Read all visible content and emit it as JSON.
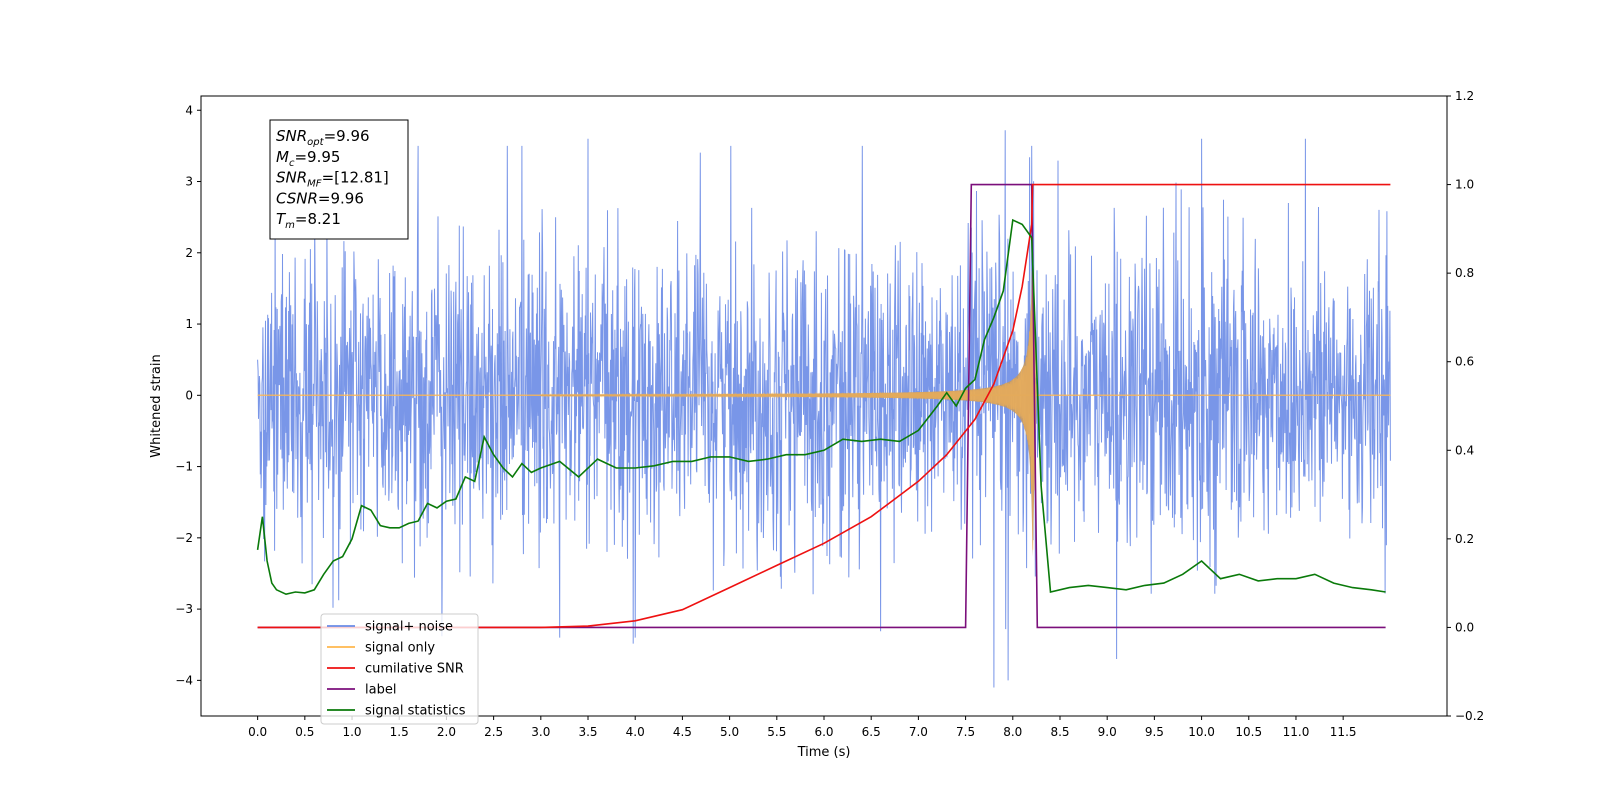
{
  "chart_data": {
    "type": "line",
    "xlabel": "Time (s)",
    "ylabel": "Whitened strain",
    "xlim": [
      -0.6,
      12.6
    ],
    "ylim": [
      -4.5,
      4.2
    ],
    "y2lim": [
      -0.2,
      1.2
    ],
    "x_ticks": [
      0.0,
      0.5,
      1.0,
      1.5,
      2.0,
      2.5,
      3.0,
      3.5,
      4.0,
      4.5,
      5.0,
      5.5,
      6.0,
      6.5,
      7.0,
      7.5,
      8.0,
      8.5,
      9.0,
      9.5,
      10.0,
      10.5,
      11.0,
      11.5
    ],
    "y_ticks": [
      -4,
      -3,
      -2,
      -1,
      0,
      1,
      2,
      3,
      4
    ],
    "y2_ticks": [
      -0.2,
      0.0,
      0.2,
      0.4,
      0.6,
      0.8,
      1.0,
      1.2
    ],
    "grid": false,
    "legend_position": "lower-left",
    "colors": {
      "signal_noise": "#6a8be6",
      "signal_only": "#ffb74d",
      "signal_overlap": "#c19a6b",
      "cumulative_snr": "#ee1111",
      "label": "#7b0f7b",
      "signal_statistics": "#0a7a0a"
    },
    "annotation": [
      {
        "main": "SNR",
        "sub": "opt",
        "value": "=9.96"
      },
      {
        "main": "M",
        "sub": "c",
        "value": "=9.95"
      },
      {
        "main": "SNR",
        "sub": "MF",
        "value": "=[12.81]"
      },
      {
        "main": "CSNR",
        "sub": "",
        "value": "=9.96"
      },
      {
        "main": "T",
        "sub": "m",
        "value": "=8.21"
      }
    ],
    "series": [
      {
        "name": "signal+ noise",
        "axis": "left",
        "description_stats": {
          "x_start": 0.0,
          "x_end": 12.0,
          "mean": 0.0,
          "std": 1.0,
          "max": 3.72,
          "min": -4.12
        },
        "peaks": [
          [
            1.7,
            3.5
          ],
          [
            2.8,
            3.5
          ],
          [
            3.5,
            3.6
          ],
          [
            7.92,
            3.72
          ],
          [
            8.2,
            3.5
          ],
          [
            10.0,
            3.6
          ],
          [
            11.1,
            3.6
          ],
          [
            7.8,
            -4.1
          ],
          [
            7.95,
            -4.0
          ],
          [
            9.1,
            -3.7
          ],
          [
            3.2,
            -3.4
          ],
          [
            4.0,
            -3.4
          ]
        ]
      },
      {
        "name": "signal only",
        "axis": "left",
        "chirp": {
          "t_start": 0.0,
          "t_merger": 8.21,
          "amp_start": 0.01,
          "amp_merger": 2.3,
          "ringdown_end": 8.25
        }
      },
      {
        "name": "cumilative SNR",
        "axis": "right",
        "x": [
          0.0,
          3.0,
          3.5,
          4.0,
          4.5,
          5.0,
          5.5,
          6.0,
          6.5,
          7.0,
          7.3,
          7.6,
          7.8,
          8.0,
          8.1,
          8.2,
          8.21,
          12.0
        ],
        "y": [
          0.0,
          0.0,
          0.003,
          0.015,
          0.04,
          0.09,
          0.14,
          0.19,
          0.25,
          0.33,
          0.39,
          0.47,
          0.55,
          0.67,
          0.77,
          0.91,
          1.0,
          1.0
        ]
      },
      {
        "name": "label",
        "axis": "right",
        "x": [
          0.0,
          7.5,
          7.56,
          8.2,
          8.26,
          11.95
        ],
        "y": [
          0.0,
          0.0,
          1.0,
          1.0,
          0.0,
          0.0
        ]
      },
      {
        "name": "signal statistics",
        "axis": "right",
        "x": [
          0.0,
          0.05,
          0.1,
          0.15,
          0.2,
          0.3,
          0.4,
          0.5,
          0.6,
          0.7,
          0.8,
          0.9,
          1.0,
          1.1,
          1.2,
          1.3,
          1.4,
          1.5,
          1.6,
          1.7,
          1.8,
          1.9,
          2.0,
          2.1,
          2.2,
          2.3,
          2.35,
          2.4,
          2.5,
          2.6,
          2.7,
          2.8,
          2.9,
          3.0,
          3.2,
          3.4,
          3.6,
          3.8,
          4.0,
          4.2,
          4.4,
          4.6,
          4.8,
          5.0,
          5.2,
          5.4,
          5.6,
          5.8,
          6.0,
          6.2,
          6.4,
          6.6,
          6.8,
          7.0,
          7.2,
          7.3,
          7.4,
          7.5,
          7.6,
          7.7,
          7.8,
          7.9,
          8.0,
          8.1,
          8.2,
          8.3,
          8.4,
          8.6,
          8.8,
          9.0,
          9.2,
          9.4,
          9.6,
          9.8,
          10.0,
          10.2,
          10.4,
          10.6,
          10.8,
          11.0,
          11.2,
          11.4,
          11.6,
          11.8,
          11.95
        ],
        "y": [
          0.175,
          0.25,
          0.15,
          0.1,
          0.085,
          0.075,
          0.08,
          0.078,
          0.085,
          0.12,
          0.15,
          0.16,
          0.2,
          0.275,
          0.265,
          0.23,
          0.225,
          0.225,
          0.235,
          0.24,
          0.28,
          0.27,
          0.285,
          0.29,
          0.34,
          0.33,
          0.38,
          0.43,
          0.39,
          0.36,
          0.34,
          0.37,
          0.35,
          0.36,
          0.375,
          0.34,
          0.38,
          0.36,
          0.36,
          0.365,
          0.375,
          0.375,
          0.385,
          0.385,
          0.375,
          0.38,
          0.39,
          0.39,
          0.4,
          0.425,
          0.42,
          0.425,
          0.42,
          0.445,
          0.5,
          0.53,
          0.5,
          0.54,
          0.56,
          0.65,
          0.7,
          0.76,
          0.92,
          0.91,
          0.88,
          0.32,
          0.08,
          0.09,
          0.095,
          0.09,
          0.085,
          0.095,
          0.1,
          0.12,
          0.15,
          0.11,
          0.12,
          0.105,
          0.11,
          0.11,
          0.12,
          0.1,
          0.09,
          0.085,
          0.08
        ]
      }
    ]
  }
}
